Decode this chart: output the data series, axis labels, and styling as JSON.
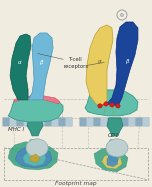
{
  "bg_color": "#f0ece0",
  "label_mhc": "MHC I",
  "label_cd1": "CD1",
  "label_tcell": "T-cell\nreceptors",
  "label_footprint": "Footprint map",
  "colors": {
    "teal_dark": "#1a7a6a",
    "teal_mid": "#3a9a88",
    "teal_light": "#60bfaa",
    "teal_pale": "#80d0c0",
    "sky_blue": "#70b8d8",
    "blue_dark": "#1a4598",
    "blue_mid": "#2a5ab8",
    "yellow": "#e8cc60",
    "yellow_light": "#f0dc80",
    "gray_light": "#c0d0d0",
    "gray_med": "#90b0b0",
    "gray_dark": "#6090a0",
    "pink": "#e87888",
    "red_bright": "#cc2222",
    "green_dull": "#7aaa60",
    "mem1": "#8aacbe",
    "mem2": "#b8ccd8",
    "fp_blue": "#4888c0",
    "fp_teal": "#38a080",
    "fp_cyan": "#60c0b0",
    "fp_yellow": "#c8a030",
    "dashed": "#999999"
  }
}
